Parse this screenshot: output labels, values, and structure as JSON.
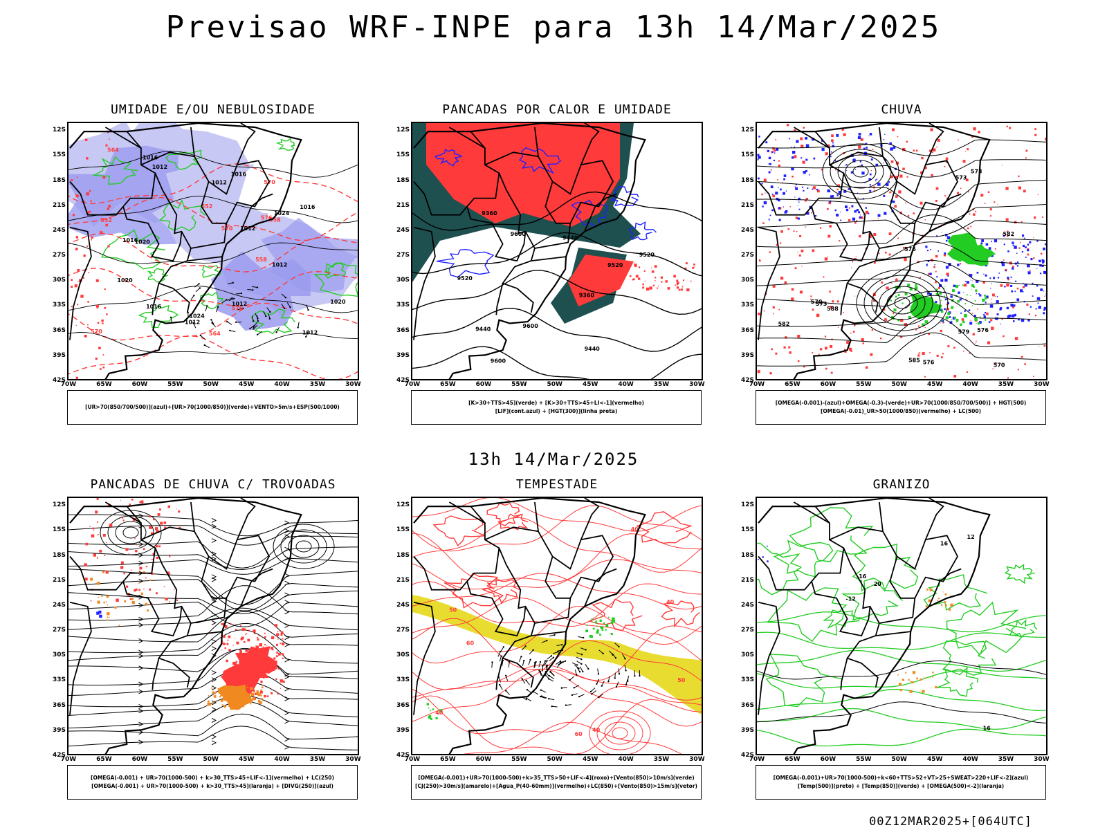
{
  "main_title": "Previsao WRF-INPE  para 13h 14/Mar/2025",
  "mid_title": "13h 14/Mar/2025",
  "footer": "00Z12MAR2025+[064UTC]",
  "lat_ticks": [
    "12S",
    "15S",
    "18S",
    "21S",
    "24S",
    "27S",
    "30S",
    "33S",
    "36S",
    "39S",
    "42S"
  ],
  "lon_ticks": [
    "70W",
    "65W",
    "60W",
    "55W",
    "50W",
    "45W",
    "40W",
    "35W",
    "30W"
  ],
  "colors": {
    "blue": "#9b9bf0",
    "lightblue": "#c8c8f5",
    "green": "#22cc22",
    "red": "#ff3a3a",
    "dark_teal": "#1e5050",
    "yellow": "#e8dc30",
    "orange": "#f08a20",
    "navy": "#2020ff"
  },
  "panels": [
    {
      "id": "umidade",
      "title": "UMIDADE E/OU NEBULOSIDADE",
      "legend": [
        "[UR>70(850/700/500)](azul)+[UR>70(1000/850)](verde)+VENTO>5m/s+ESP(500/1000)"
      ],
      "contour_labels": [
        "1012",
        "1012",
        "1012",
        "1016",
        "1020",
        "1016",
        "1012",
        "1012",
        "1012",
        "1016",
        "1016",
        "1020",
        "1020",
        "1024",
        "1024",
        "570",
        "576",
        "564",
        "558",
        "552",
        "564",
        "558",
        "552",
        "576",
        "570",
        "570",
        "1016",
        "1012"
      ]
    },
    {
      "id": "pancadas_calor",
      "title": "PANCADAS POR CALOR E UMIDADE",
      "legend": [
        "[K>30+TTS>45](verde) + [K>30+TTS>45+LI<-1](vermelho)",
        "[LIF](cont.azul) + [HGT(300)](linha preta)"
      ],
      "contour_labels": [
        "9600",
        "9520",
        "9440",
        "9360",
        "9600",
        "9520",
        "9440",
        "9360",
        "9600",
        "9520",
        "9440"
      ]
    },
    {
      "id": "chuva",
      "title": "CHUVA",
      "legend": [
        "[OMEGA(-0.001)-(azul)+OMEGA(-0.3)-(verde)+UR>70(1000/850/700/500)] + HGT(500)",
        "[OMEGA(-0.01)_UR>50(1000/850)(vermelho) + LC(500)"
      ],
      "contour_labels": [
        "588",
        "582",
        "576",
        "573",
        "570",
        "576",
        "579",
        "573",
        "582",
        "570",
        "573",
        "576",
        "585"
      ]
    },
    {
      "id": "trovoadas",
      "title": "PANCADAS DE CHUVA C/ TROVOADAS",
      "legend": [
        "[OMEGA(-0.001) + UR>70(1000-500) + k>30_TTS>45+LIF<-1](vermelho) + LC(250)",
        "[OMEGA(-0.001) + UR>70(1000-500) + k>30_TTS>45](laranja) + [DIVG(250)](azul)"
      ],
      "contour_labels": []
    },
    {
      "id": "tempestade",
      "title": "TEMPESTADE",
      "legend": [
        "[OMEGA(-0.001)+UR>70(1000-500)+k>35_TTS>50+LIF<-4](roxo)+[Vento(850)>10m/s](verde)",
        "[CJ(250)>30m/s](amarelo)+[Agua_P(40-60mm)](vermelho)+LC(850)+[Vento(850)>15m/s](vetor)"
      ],
      "contour_labels": [
        "40",
        "40",
        "50",
        "50",
        "40",
        "60",
        "40",
        "60"
      ]
    },
    {
      "id": "granizo",
      "title": "GRANIZO",
      "legend": [
        "[OMEGA(-0.001)+UR>70(1000-500)+k<60+TTS>52+VT>25+SWEAT>220+LIF<-2](azul)",
        "[Temp(500)](preto) + [Temp(850)](verde) + [OMEGA(500)<-2](laranja)"
      ],
      "contour_labels": [
        "-12",
        "-16",
        "16",
        "12",
        "16",
        "20"
      ]
    }
  ]
}
